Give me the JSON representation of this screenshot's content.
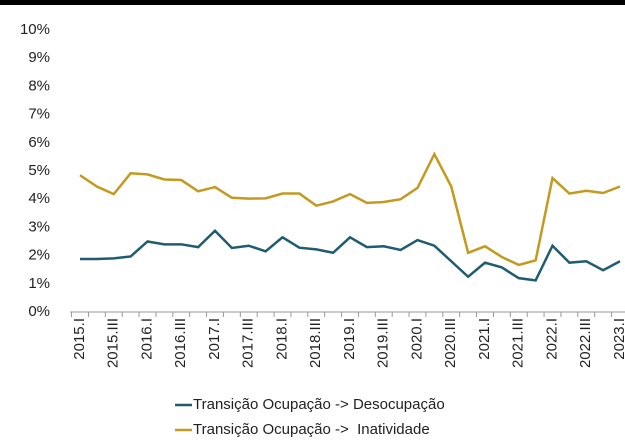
{
  "chart_data": {
    "type": "line",
    "categories": [
      "2015.I",
      null,
      "2015.III",
      null,
      "2016.I",
      null,
      "2016.III",
      null,
      "2017.I",
      null,
      "2017.III",
      null,
      "2018.I",
      null,
      "2018.III",
      null,
      "2019.I",
      null,
      "2019.III",
      null,
      "2020.I",
      null,
      "2020.III",
      null,
      "2021.I",
      null,
      "2021.III",
      null,
      "2022.I",
      null,
      "2022.III",
      null,
      "2023.I"
    ],
    "series": [
      {
        "name": "Transição Ocupação -> Desocupação",
        "color": "#1f5c70",
        "values": [
          1.88,
          1.88,
          1.9,
          1.97,
          2.5,
          2.4,
          2.4,
          2.3,
          2.88,
          2.27,
          2.35,
          2.15,
          2.65,
          2.28,
          2.22,
          2.1,
          2.65,
          2.3,
          2.33,
          2.2,
          2.55,
          2.35,
          1.8,
          1.25,
          1.75,
          1.58,
          1.2,
          1.12,
          2.35,
          1.75,
          1.8,
          1.48,
          1.8
        ]
      },
      {
        "name": "Transição Ocupação ->  Inatividade",
        "color": "#c39a1e",
        "values": [
          4.85,
          4.45,
          4.18,
          4.92,
          4.88,
          4.7,
          4.68,
          4.28,
          4.43,
          4.05,
          4.02,
          4.03,
          4.2,
          4.2,
          3.77,
          3.92,
          4.18,
          3.87,
          3.9,
          4.0,
          4.4,
          5.6,
          4.45,
          2.1,
          2.33,
          1.95,
          1.67,
          1.83,
          4.75,
          4.2,
          4.3,
          4.22,
          4.45
        ]
      }
    ],
    "ylim": [
      0,
      10
    ],
    "yticks": [
      {
        "value": 0,
        "label": "0%"
      },
      {
        "value": 1,
        "label": "1%"
      },
      {
        "value": 2,
        "label": "2%"
      },
      {
        "value": 3,
        "label": "3%"
      },
      {
        "value": 4,
        "label": "4%"
      },
      {
        "value": 5,
        "label": "5%"
      },
      {
        "value": 6,
        "label": "6%"
      },
      {
        "value": 7,
        "label": "7%"
      },
      {
        "value": 8,
        "label": "8%"
      },
      {
        "value": 9,
        "label": "9%"
      },
      {
        "value": 10,
        "label": "10%"
      }
    ],
    "grid": false
  }
}
